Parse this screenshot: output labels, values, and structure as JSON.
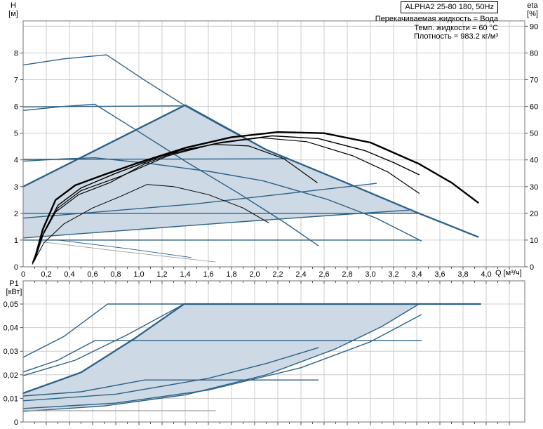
{
  "header": {
    "model": "ALPHA2 25-80 180, 50Hz",
    "info_lines": [
      "Перекачиваемая жидкость = Вода",
      "Темп. жидкости = 60 °C",
      "Плотность = 983.2 кг/м³"
    ]
  },
  "axis_titles": {
    "head": "H",
    "head_unit": "[м]",
    "eta": "eta",
    "eta_unit": "[%]",
    "power": "P1",
    "power_unit": "[кВт]",
    "flow": "Q [м³/ч]"
  },
  "colors": {
    "curve": "#2d6186",
    "envelope_fill": "#cdd9e5",
    "envelope_border": "#2d6186",
    "eta_curve": "#000000",
    "gray_curve": "#9a9a9a",
    "grid": "#cccccc",
    "frame": "#8a8a8a",
    "tick": "#555555"
  },
  "chart_data": [
    {
      "id": "head-flow-plot",
      "type": "line",
      "title": "",
      "xlabel": "Q [м³/ч]",
      "ylabel_left": "H [м]",
      "ylabel_right": "eta [%]",
      "x_range": [
        0,
        4.333
      ],
      "y_range_h": [
        0,
        9.2
      ],
      "y_range_eta": [
        0,
        92
      ],
      "grid": true,
      "x_ticks": [
        "0",
        "0,2",
        "0,4",
        "0,6",
        "0,8",
        "1,0",
        "1,2",
        "1,4",
        "1,6",
        "1,8",
        "2,0",
        "2,2",
        "2,4",
        "2,6",
        "2,8",
        "3,0",
        "3,2",
        "3,4",
        "3,6",
        "3,8",
        "4,0"
      ],
      "h_ticks": [
        "0",
        "1",
        "2",
        "3",
        "4",
        "5",
        "6",
        "7",
        "8"
      ],
      "eta_ticks": [
        "0",
        "10",
        "20",
        "30",
        "40",
        "50",
        "60",
        "70",
        "80",
        "90"
      ],
      "envelope": {
        "fill_points": [
          [
            0,
            1.08
          ],
          [
            0,
            3.0
          ],
          [
            1.4,
            6.05
          ],
          [
            2.1,
            4.38
          ],
          [
            2.77,
            3.18
          ],
          [
            3.42,
            2.0
          ],
          [
            2.81,
            1.96
          ],
          [
            1.8,
            1.66
          ]
        ],
        "border_points": [
          [
            0,
            3.0
          ],
          [
            1.4,
            6.05
          ],
          [
            2.1,
            4.38
          ],
          [
            2.77,
            3.18
          ],
          [
            3.42,
            2.0
          ],
          [
            3.93,
            1.12
          ]
        ]
      },
      "series": [
        {
          "name": "cp-curve-6m",
          "points": [
            [
              0,
              5.98
            ],
            [
              0.5,
              6.0
            ],
            [
              1.37,
              6.02
            ]
          ]
        },
        {
          "name": "cp-curve-4m",
          "points": [
            [
              0,
              4.02
            ],
            [
              1.2,
              4.03
            ],
            [
              2.28,
              4.04
            ]
          ]
        },
        {
          "name": "cp-curve-2m",
          "points": [
            [
              0,
              2.0
            ],
            [
              3.43,
              2.0
            ]
          ]
        },
        {
          "name": "cp-curve-1m",
          "points": [
            [
              0,
              1.0
            ],
            [
              3.42,
              1.0
            ]
          ]
        },
        {
          "name": "speed-iii-curve",
          "points": [
            [
              0,
              7.55
            ],
            [
              0.35,
              7.78
            ],
            [
              0.72,
              7.93
            ],
            [
              1.05,
              6.98
            ],
            [
              1.4,
              6.02
            ],
            [
              1.75,
              5.18
            ],
            [
              2.1,
              4.38
            ],
            [
              2.77,
              3.18
            ],
            [
              3.42,
              2.0
            ],
            [
              3.93,
              1.12
            ]
          ]
        },
        {
          "name": "speed-ii-curve",
          "points": [
            [
              0,
              5.85
            ],
            [
              0.35,
              6.0
            ],
            [
              0.62,
              6.08
            ],
            [
              1.0,
              5.05
            ],
            [
              1.4,
              3.95
            ],
            [
              1.85,
              2.78
            ],
            [
              2.25,
              1.68
            ],
            [
              2.55,
              0.79
            ]
          ]
        },
        {
          "name": "speed-i-curve",
          "points": [
            [
              0,
              3.95
            ],
            [
              0.35,
              4.04
            ],
            [
              0.62,
              4.08
            ],
            [
              1.1,
              3.86
            ],
            [
              1.62,
              3.56
            ],
            [
              2.07,
              3.22
            ],
            [
              2.63,
              2.52
            ],
            [
              3.05,
              1.82
            ],
            [
              3.44,
              0.97
            ]
          ]
        },
        {
          "name": "pp-curve-2",
          "points": [
            [
              0,
              1.82
            ],
            [
              1.5,
              2.36
            ],
            [
              3.05,
              3.12
            ]
          ]
        },
        {
          "name": "pp-curve-1",
          "points": [
            [
              0,
              1.08
            ],
            [
              1.8,
              1.66
            ],
            [
              2.81,
              1.97
            ],
            [
              3.33,
              2.12
            ]
          ]
        },
        {
          "name": "min-curve-dark",
          "width": 0.9,
          "points": [
            [
              0.3,
              1.0
            ],
            [
              0.9,
              0.68
            ],
            [
              1.45,
              0.35
            ]
          ]
        },
        {
          "name": "min-curve-gray",
          "color": "gray",
          "width": 0.9,
          "points": [
            [
              0.13,
              0.95
            ],
            [
              0.8,
              0.6
            ],
            [
              1.66,
              0.18
            ]
          ]
        }
      ],
      "eta_series": [
        {
          "name": "eta-curve-max",
          "width": 2.4,
          "points": [
            [
              0.1,
              3
            ],
            [
              0.17,
              14
            ],
            [
              0.28,
              25
            ],
            [
              0.45,
              30.5
            ],
            [
              0.7,
              34.5
            ],
            [
              1.0,
              39
            ],
            [
              1.4,
              44.5
            ],
            [
              1.8,
              48.5
            ],
            [
              2.2,
              50.4
            ],
            [
              2.6,
              50
            ],
            [
              3.0,
              46.5
            ],
            [
              3.42,
              38.5
            ],
            [
              3.7,
              31.5
            ],
            [
              3.93,
              24
            ]
          ]
        },
        {
          "name": "eta-curve-4",
          "width": 1.4,
          "points": [
            [
              0.1,
              2.5
            ],
            [
              0.18,
              13
            ],
            [
              0.3,
              23
            ],
            [
              0.5,
              29.5
            ],
            [
              0.8,
              35
            ],
            [
              1.2,
              41.5
            ],
            [
              1.7,
              46.5
            ],
            [
              2.15,
              49
            ],
            [
              2.55,
              48
            ],
            [
              2.95,
              43.5
            ],
            [
              3.2,
              39
            ],
            [
              3.42,
              34.5
            ]
          ]
        },
        {
          "name": "eta-curve-3",
          "width": 1.2,
          "points": [
            [
              0.09,
              2
            ],
            [
              0.17,
              12
            ],
            [
              0.3,
              22
            ],
            [
              0.5,
              28.5
            ],
            [
              0.85,
              34
            ],
            [
              1.25,
              41.5
            ],
            [
              1.65,
              46
            ],
            [
              2.05,
              48.3
            ],
            [
              2.45,
              46.8
            ],
            [
              2.85,
              41.5
            ],
            [
              3.15,
              35.5
            ],
            [
              3.42,
              27.5
            ]
          ]
        },
        {
          "name": "eta-curve-2",
          "width": 1.2,
          "points": [
            [
              0.08,
              1.5
            ],
            [
              0.16,
              11
            ],
            [
              0.28,
              20.5
            ],
            [
              0.48,
              27
            ],
            [
              0.75,
              31.5
            ],
            [
              1.05,
              38.5
            ],
            [
              1.35,
              43.5
            ],
            [
              1.65,
              45.8
            ],
            [
              1.95,
              45.2
            ],
            [
              2.25,
              40.5
            ],
            [
              2.54,
              31.5
            ]
          ]
        },
        {
          "name": "eta-curve-low",
          "width": 1.0,
          "points": [
            [
              0.08,
              1
            ],
            [
              0.18,
              9
            ],
            [
              0.35,
              16
            ],
            [
              0.6,
              22
            ],
            [
              0.85,
              26.5
            ],
            [
              1.07,
              30.8
            ],
            [
              1.3,
              30
            ],
            [
              1.6,
              27
            ],
            [
              1.9,
              22
            ],
            [
              2.12,
              16.5
            ]
          ]
        }
      ]
    },
    {
      "id": "power-flow-plot",
      "type": "line",
      "xlabel": "Q [м³/ч]",
      "ylabel_left": "P1 [кВт]",
      "x_range": [
        0,
        4.333
      ],
      "y_range_p": [
        0,
        0.0598
      ],
      "grid": true,
      "p_ticks": [
        "0",
        "0,01",
        "0,02",
        "0,03",
        "0,04",
        "0,05"
      ],
      "envelope": {
        "fill_points": [
          [
            0,
            0.0045
          ],
          [
            0.7,
            0.0068
          ],
          [
            1.4,
            0.0115
          ],
          [
            2.1,
            0.02
          ],
          [
            2.7,
            0.031
          ],
          [
            3.1,
            0.0405
          ],
          [
            3.42,
            0.05
          ],
          [
            1.39,
            0.05
          ],
          [
            0.95,
            0.035
          ],
          [
            0.5,
            0.021
          ],
          [
            0,
            0.0122
          ]
        ],
        "border_points": [
          [
            0,
            0.0122
          ],
          [
            0.5,
            0.021
          ],
          [
            0.95,
            0.035
          ],
          [
            1.39,
            0.05
          ],
          [
            3.95,
            0.05
          ]
        ]
      },
      "series": [
        {
          "name": "p1-curve-max",
          "points": [
            [
              0,
              0.0274
            ],
            [
              0.35,
              0.0362
            ],
            [
              0.73,
              0.05
            ],
            [
              3.95,
              0.05
            ]
          ]
        },
        {
          "name": "p1-curve-cp",
          "points": [
            [
              0,
              0.0212
            ],
            [
              0.3,
              0.0262
            ],
            [
              0.62,
              0.0345
            ],
            [
              3.44,
              0.0345
            ]
          ]
        },
        {
          "name": "p1-curve-pp",
          "points": [
            [
              0,
              0.0196
            ],
            [
              0.45,
              0.0262
            ],
            [
              0.9,
              0.037
            ],
            [
              1.39,
              0.05
            ]
          ]
        },
        {
          "name": "p1-curve-mid-flat",
          "points": [
            [
              0,
              0.011
            ],
            [
              0.5,
              0.0128
            ],
            [
              1.05,
              0.0178
            ],
            [
              2.55,
              0.0178
            ]
          ]
        },
        {
          "name": "p1-curve-speed-ii",
          "points": [
            [
              0,
              0.009
            ],
            [
              0.8,
              0.0118
            ],
            [
              1.6,
              0.0185
            ],
            [
              2.1,
              0.0248
            ],
            [
              2.55,
              0.0315
            ]
          ]
        },
        {
          "name": "p1-curve-speed-i",
          "points": [
            [
              0,
              0.0057
            ],
            [
              0.8,
              0.008
            ],
            [
              1.6,
              0.0135
            ],
            [
              2.4,
              0.023
            ],
            [
              3.0,
              0.034
            ],
            [
              3.44,
              0.0455
            ]
          ]
        },
        {
          "name": "p1-envelope-bottom",
          "points": [
            [
              0,
              0.0045
            ],
            [
              0.7,
              0.0068
            ],
            [
              1.4,
              0.0115
            ],
            [
              2.1,
              0.02
            ],
            [
              2.7,
              0.031
            ],
            [
              3.1,
              0.0405
            ],
            [
              3.42,
              0.05
            ]
          ]
        },
        {
          "name": "p1-min-gray",
          "color": "gray",
          "width": 1.1,
          "points": [
            [
              0,
              0.0048
            ],
            [
              1.66,
              0.0048
            ]
          ]
        }
      ]
    }
  ]
}
